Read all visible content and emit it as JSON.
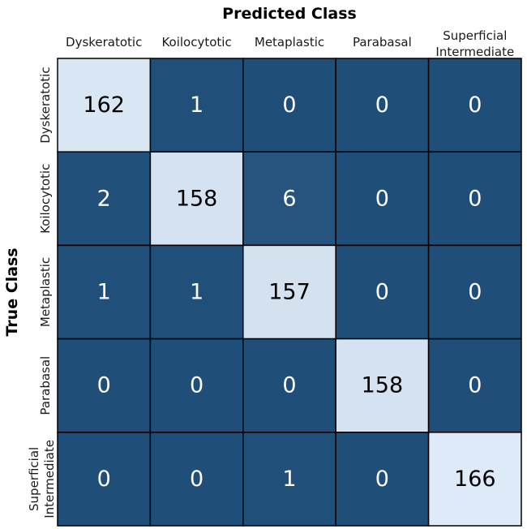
{
  "chart_data": {
    "type": "heatmap",
    "title": "",
    "xlabel": "Predicted Class",
    "ylabel": "True Class",
    "x_categories": [
      [
        "Dyskeratotic"
      ],
      [
        "Koilocytotic"
      ],
      [
        "Metaplastic"
      ],
      [
        "Parabasal"
      ],
      [
        "Superficial",
        "Intermediate"
      ]
    ],
    "y_categories": [
      [
        "Dyskeratotic"
      ],
      [
        "Koilocytotic"
      ],
      [
        "Metaplastic"
      ],
      [
        "Parabasal"
      ],
      [
        "Superficial",
        "Intermediate"
      ]
    ],
    "values": [
      [
        162,
        1,
        0,
        0,
        0
      ],
      [
        2,
        158,
        6,
        0,
        0
      ],
      [
        1,
        1,
        157,
        0,
        0
      ],
      [
        0,
        0,
        0,
        158,
        0
      ],
      [
        0,
        0,
        1,
        0,
        166
      ]
    ],
    "colors": {
      "high": "#deeaf7",
      "low": "#1f4e79",
      "grid": "#000000",
      "text_on_high": "#000000",
      "text_on_low": "#ffffff"
    },
    "grid": true,
    "legend": "none"
  }
}
